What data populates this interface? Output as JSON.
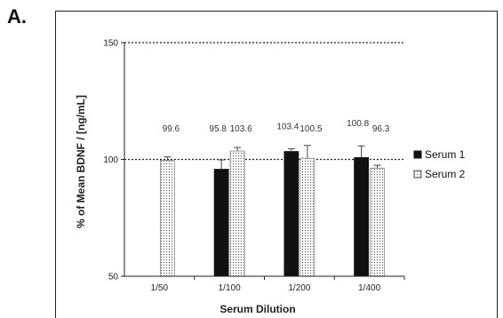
{
  "panel_label": "A.",
  "chart_data": {
    "type": "bar",
    "title": "",
    "xlabel": "Serum Dilution",
    "ylabel": "% of Mean BDNF / [ng/mL]",
    "categories": [
      "1/50",
      "1/100",
      "1/200",
      "1/400"
    ],
    "ylim": [
      50,
      150
    ],
    "yticks": [
      "50",
      "100",
      "150"
    ],
    "reference_lines": [
      100,
      150
    ],
    "legend_position": "right",
    "series": [
      {
        "name": "Serum 1",
        "color": "#111111",
        "pattern": "solid",
        "values": [
          null,
          95.8,
          103.4,
          100.8
        ],
        "errors": [
          null,
          4.0,
          1.2,
          5.0
        ],
        "labels": [
          "",
          "95.8",
          "103.4",
          "100.8"
        ]
      },
      {
        "name": "Serum 2",
        "color": "#e8e8e8",
        "pattern": "dotted",
        "values": [
          99.6,
          103.6,
          100.5,
          96.3
        ],
        "errors": [
          1.5,
          1.5,
          5.5,
          1.2
        ],
        "labels": [
          "99.6",
          "103.6",
          "100.5",
          "96.3"
        ]
      }
    ]
  }
}
